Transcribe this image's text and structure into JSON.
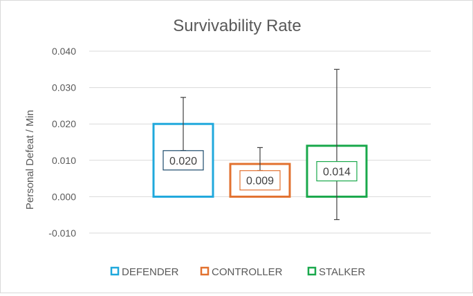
{
  "chart_data": {
    "type": "bar",
    "title": "Survivability Rate",
    "xlabel": "",
    "ylabel": "Personal Defeat / Min",
    "ylim": [
      -0.01,
      0.04
    ],
    "yticks": [
      "0.040",
      "0.030",
      "0.020",
      "0.010",
      "0.000",
      "-0.010"
    ],
    "grid": true,
    "legend": "bottom",
    "series": [
      {
        "name": "DEFENDER",
        "value": 0.02,
        "label": "0.020",
        "error_low": 0.0127,
        "error_high": 0.0273,
        "color": "#1fa8dc"
      },
      {
        "name": "CONTROLLER",
        "value": 0.009,
        "label": "0.009",
        "error_low": 0.0072,
        "error_high": 0.0135,
        "color": "#e2712f"
      },
      {
        "name": "STALKER",
        "value": 0.014,
        "label": "0.014",
        "error_low": -0.0063,
        "error_high": 0.035,
        "color": "#19a84b"
      }
    ]
  }
}
